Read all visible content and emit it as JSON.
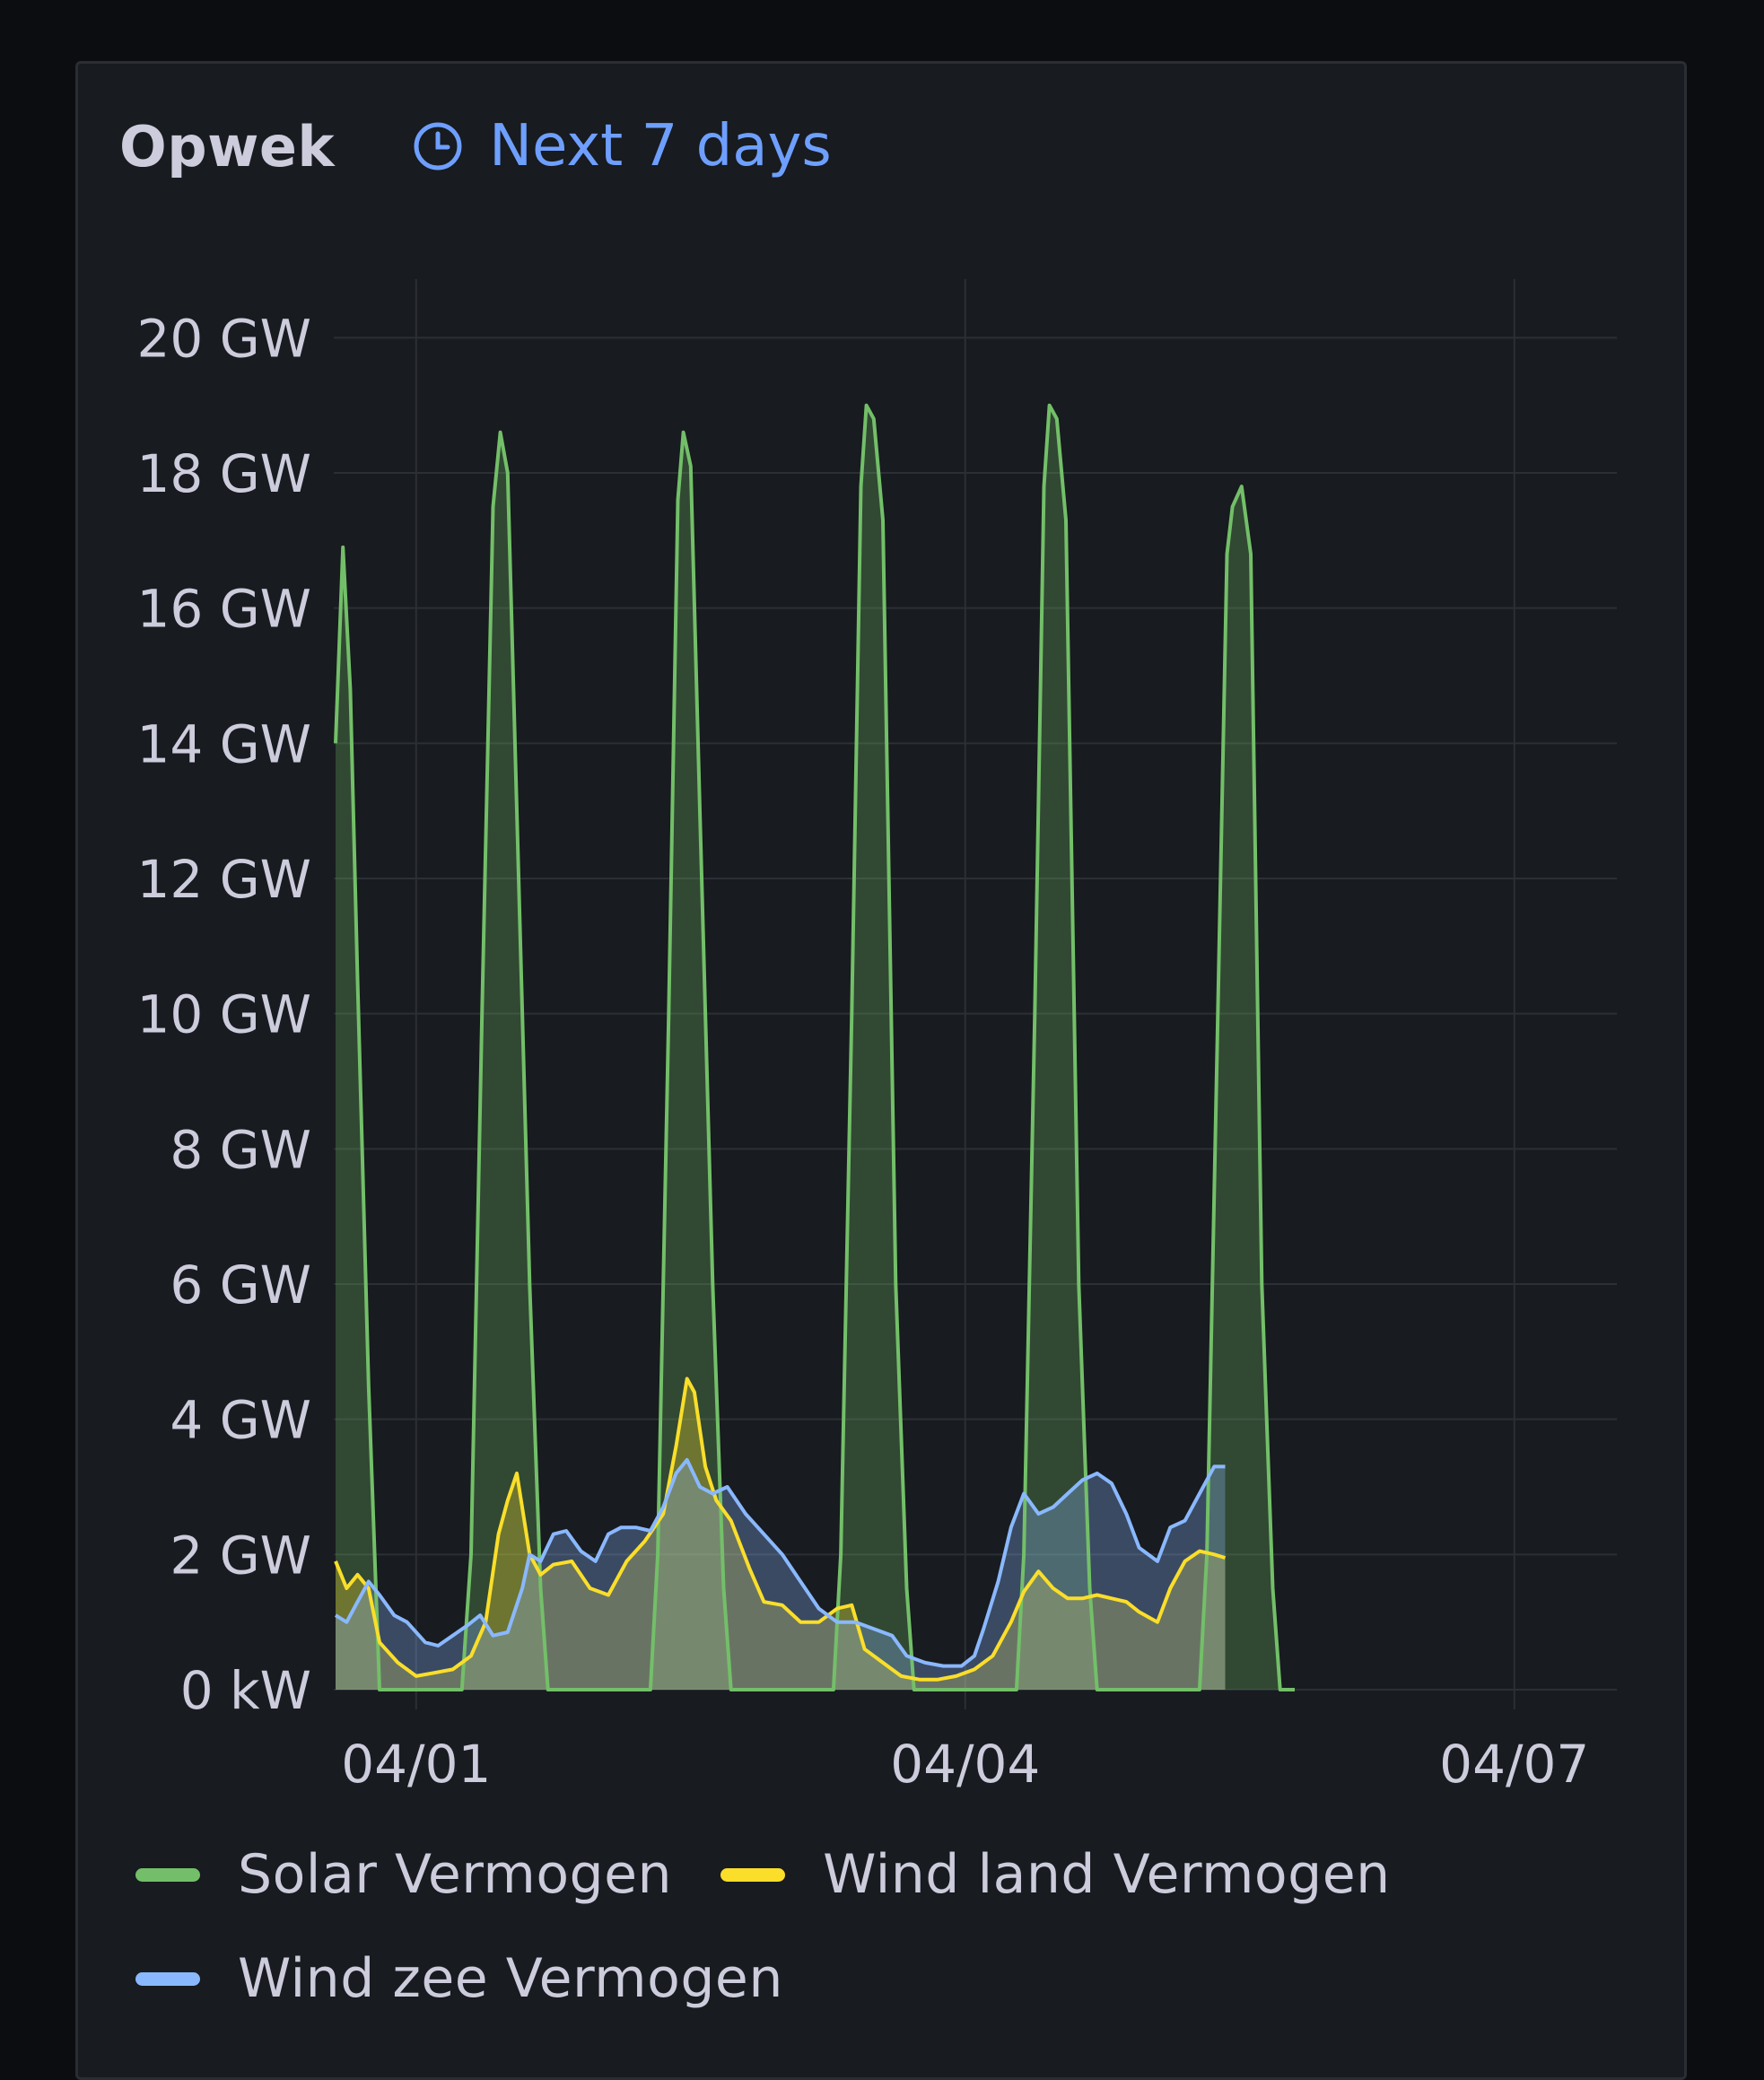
{
  "panel": {
    "title": "Opwek",
    "time_range_label": "Next 7 days",
    "time_range_icon": "clock-icon"
  },
  "colors": {
    "solar": "#73bf69",
    "wind_land": "#fade2a",
    "wind_zee": "#8ab8ff",
    "grid": "#2c2f35",
    "axis_text": "#ccccdc",
    "accent": "#6e9fff"
  },
  "chart_data": {
    "type": "area",
    "title": "Opwek",
    "x_tick_labels": [
      "04/01",
      "04/04",
      "04/07"
    ],
    "x_range_days": [
      -0.45,
      6.56
    ],
    "y_tick_labels": [
      "0 kW",
      "2 GW",
      "4 GW",
      "6 GW",
      "8 GW",
      "10 GW",
      "12 GW",
      "14 GW",
      "16 GW",
      "18 GW",
      "20 GW"
    ],
    "y_range_gw": [
      0,
      21
    ],
    "grid": true,
    "legend_position": "bottom",
    "series": [
      {
        "name": "Solar Vermogen",
        "color": "#73bf69",
        "points": [
          [
            -0.44,
            14
          ],
          [
            -0.4,
            16.9
          ],
          [
            -0.36,
            14.8
          ],
          [
            -0.32,
            10.5
          ],
          [
            -0.26,
            4.5
          ],
          [
            -0.2,
            0
          ],
          [
            -0.1,
            0
          ],
          [
            0.0,
            0
          ],
          [
            0.1,
            0
          ],
          [
            0.25,
            0
          ],
          [
            0.3,
            2
          ],
          [
            0.36,
            10
          ],
          [
            0.42,
            17.5
          ],
          [
            0.46,
            18.6
          ],
          [
            0.5,
            18
          ],
          [
            0.55,
            13
          ],
          [
            0.62,
            6
          ],
          [
            0.68,
            1.5
          ],
          [
            0.72,
            0
          ],
          [
            0.85,
            0
          ],
          [
            1.0,
            0
          ],
          [
            1.15,
            0
          ],
          [
            1.28,
            0
          ],
          [
            1.32,
            2
          ],
          [
            1.38,
            10
          ],
          [
            1.43,
            17.6
          ],
          [
            1.46,
            18.6
          ],
          [
            1.5,
            18.1
          ],
          [
            1.55,
            13
          ],
          [
            1.62,
            6
          ],
          [
            1.68,
            1.5
          ],
          [
            1.72,
            0
          ],
          [
            1.85,
            0
          ],
          [
            2.0,
            0
          ],
          [
            2.15,
            0
          ],
          [
            2.28,
            0
          ],
          [
            2.32,
            2
          ],
          [
            2.38,
            10
          ],
          [
            2.43,
            17.8
          ],
          [
            2.46,
            19.0
          ],
          [
            2.5,
            18.8
          ],
          [
            2.55,
            17.3
          ],
          [
            2.62,
            6
          ],
          [
            2.68,
            1.5
          ],
          [
            2.72,
            0
          ],
          [
            2.85,
            0
          ],
          [
            3.0,
            0
          ],
          [
            3.15,
            0
          ],
          [
            3.28,
            0
          ],
          [
            3.32,
            2
          ],
          [
            3.38,
            10
          ],
          [
            3.43,
            17.8
          ],
          [
            3.46,
            19.0
          ],
          [
            3.5,
            18.8
          ],
          [
            3.55,
            17.3
          ],
          [
            3.62,
            6
          ],
          [
            3.68,
            1.5
          ],
          [
            3.72,
            0
          ],
          [
            3.85,
            0
          ],
          [
            4.0,
            0
          ],
          [
            4.15,
            0
          ],
          [
            4.28,
            0
          ],
          [
            4.32,
            2
          ],
          [
            4.38,
            10
          ],
          [
            4.43,
            16.8
          ],
          [
            4.46,
            17.5
          ],
          [
            4.51,
            17.8
          ],
          [
            4.56,
            16.8
          ],
          [
            4.62,
            6
          ],
          [
            4.68,
            1.5
          ],
          [
            4.72,
            0
          ],
          [
            4.8,
            0
          ]
        ]
      },
      {
        "name": "Wind land Vermogen",
        "color": "#fade2a",
        "points": [
          [
            -0.44,
            1.9
          ],
          [
            -0.38,
            1.5
          ],
          [
            -0.32,
            1.7
          ],
          [
            -0.26,
            1.5
          ],
          [
            -0.2,
            0.7
          ],
          [
            -0.1,
            0.4
          ],
          [
            0.0,
            0.2
          ],
          [
            0.1,
            0.25
          ],
          [
            0.2,
            0.3
          ],
          [
            0.3,
            0.5
          ],
          [
            0.38,
            1.0
          ],
          [
            0.45,
            2.3
          ],
          [
            0.5,
            2.8
          ],
          [
            0.55,
            3.2
          ],
          [
            0.62,
            2.0
          ],
          [
            0.68,
            1.7
          ],
          [
            0.75,
            1.85
          ],
          [
            0.85,
            1.9
          ],
          [
            0.95,
            1.5
          ],
          [
            1.05,
            1.4
          ],
          [
            1.15,
            1.9
          ],
          [
            1.25,
            2.2
          ],
          [
            1.35,
            2.6
          ],
          [
            1.42,
            3.6
          ],
          [
            1.48,
            4.6
          ],
          [
            1.52,
            4.4
          ],
          [
            1.58,
            3.3
          ],
          [
            1.64,
            2.8
          ],
          [
            1.72,
            2.5
          ],
          [
            1.82,
            1.8
          ],
          [
            1.9,
            1.3
          ],
          [
            2.0,
            1.25
          ],
          [
            2.1,
            1.0
          ],
          [
            2.2,
            1.0
          ],
          [
            2.3,
            1.2
          ],
          [
            2.38,
            1.25
          ],
          [
            2.45,
            0.6
          ],
          [
            2.55,
            0.4
          ],
          [
            2.65,
            0.2
          ],
          [
            2.75,
            0.15
          ],
          [
            2.85,
            0.15
          ],
          [
            2.95,
            0.2
          ],
          [
            3.05,
            0.3
          ],
          [
            3.15,
            0.5
          ],
          [
            3.25,
            1.0
          ],
          [
            3.32,
            1.45
          ],
          [
            3.4,
            1.75
          ],
          [
            3.48,
            1.5
          ],
          [
            3.56,
            1.35
          ],
          [
            3.64,
            1.35
          ],
          [
            3.72,
            1.4
          ],
          [
            3.8,
            1.35
          ],
          [
            3.88,
            1.3
          ],
          [
            3.95,
            1.15
          ],
          [
            4.05,
            1.0
          ],
          [
            4.12,
            1.5
          ],
          [
            4.2,
            1.9
          ],
          [
            4.28,
            2.05
          ],
          [
            4.36,
            2.0
          ],
          [
            4.42,
            1.95
          ]
        ]
      },
      {
        "name": "Wind zee Vermogen",
        "color": "#8ab8ff",
        "points": [
          [
            -0.44,
            1.1
          ],
          [
            -0.38,
            1.0
          ],
          [
            -0.32,
            1.3
          ],
          [
            -0.26,
            1.6
          ],
          [
            -0.2,
            1.4
          ],
          [
            -0.12,
            1.1
          ],
          [
            -0.05,
            1.0
          ],
          [
            0.05,
            0.7
          ],
          [
            0.12,
            0.65
          ],
          [
            0.2,
            0.8
          ],
          [
            0.28,
            0.95
          ],
          [
            0.35,
            1.1
          ],
          [
            0.42,
            0.8
          ],
          [
            0.5,
            0.85
          ],
          [
            0.58,
            1.5
          ],
          [
            0.62,
            2.0
          ],
          [
            0.68,
            1.9
          ],
          [
            0.75,
            2.3
          ],
          [
            0.82,
            2.35
          ],
          [
            0.9,
            2.05
          ],
          [
            0.98,
            1.9
          ],
          [
            1.05,
            2.3
          ],
          [
            1.12,
            2.4
          ],
          [
            1.2,
            2.4
          ],
          [
            1.28,
            2.35
          ],
          [
            1.35,
            2.7
          ],
          [
            1.42,
            3.2
          ],
          [
            1.48,
            3.4
          ],
          [
            1.55,
            3.0
          ],
          [
            1.62,
            2.9
          ],
          [
            1.7,
            3.0
          ],
          [
            1.8,
            2.6
          ],
          [
            1.9,
            2.3
          ],
          [
            2.0,
            2.0
          ],
          [
            2.1,
            1.6
          ],
          [
            2.2,
            1.2
          ],
          [
            2.3,
            1.0
          ],
          [
            2.4,
            1.0
          ],
          [
            2.5,
            0.9
          ],
          [
            2.6,
            0.8
          ],
          [
            2.68,
            0.5
          ],
          [
            2.78,
            0.4
          ],
          [
            2.88,
            0.35
          ],
          [
            2.98,
            0.35
          ],
          [
            3.05,
            0.5
          ],
          [
            3.1,
            0.9
          ],
          [
            3.18,
            1.6
          ],
          [
            3.25,
            2.4
          ],
          [
            3.32,
            2.9
          ],
          [
            3.4,
            2.6
          ],
          [
            3.48,
            2.7
          ],
          [
            3.56,
            2.9
          ],
          [
            3.64,
            3.1
          ],
          [
            3.72,
            3.2
          ],
          [
            3.8,
            3.05
          ],
          [
            3.88,
            2.6
          ],
          [
            3.95,
            2.1
          ],
          [
            4.05,
            1.9
          ],
          [
            4.12,
            2.4
          ],
          [
            4.2,
            2.5
          ],
          [
            4.28,
            2.9
          ],
          [
            4.36,
            3.3
          ],
          [
            4.42,
            3.3
          ]
        ]
      }
    ]
  },
  "legend": {
    "items": [
      {
        "label": "Solar Vermogen",
        "color": "#73bf69"
      },
      {
        "label": "Wind land Vermogen",
        "color": "#fade2a"
      },
      {
        "label": "Wind zee Vermogen",
        "color": "#8ab8ff"
      }
    ]
  }
}
